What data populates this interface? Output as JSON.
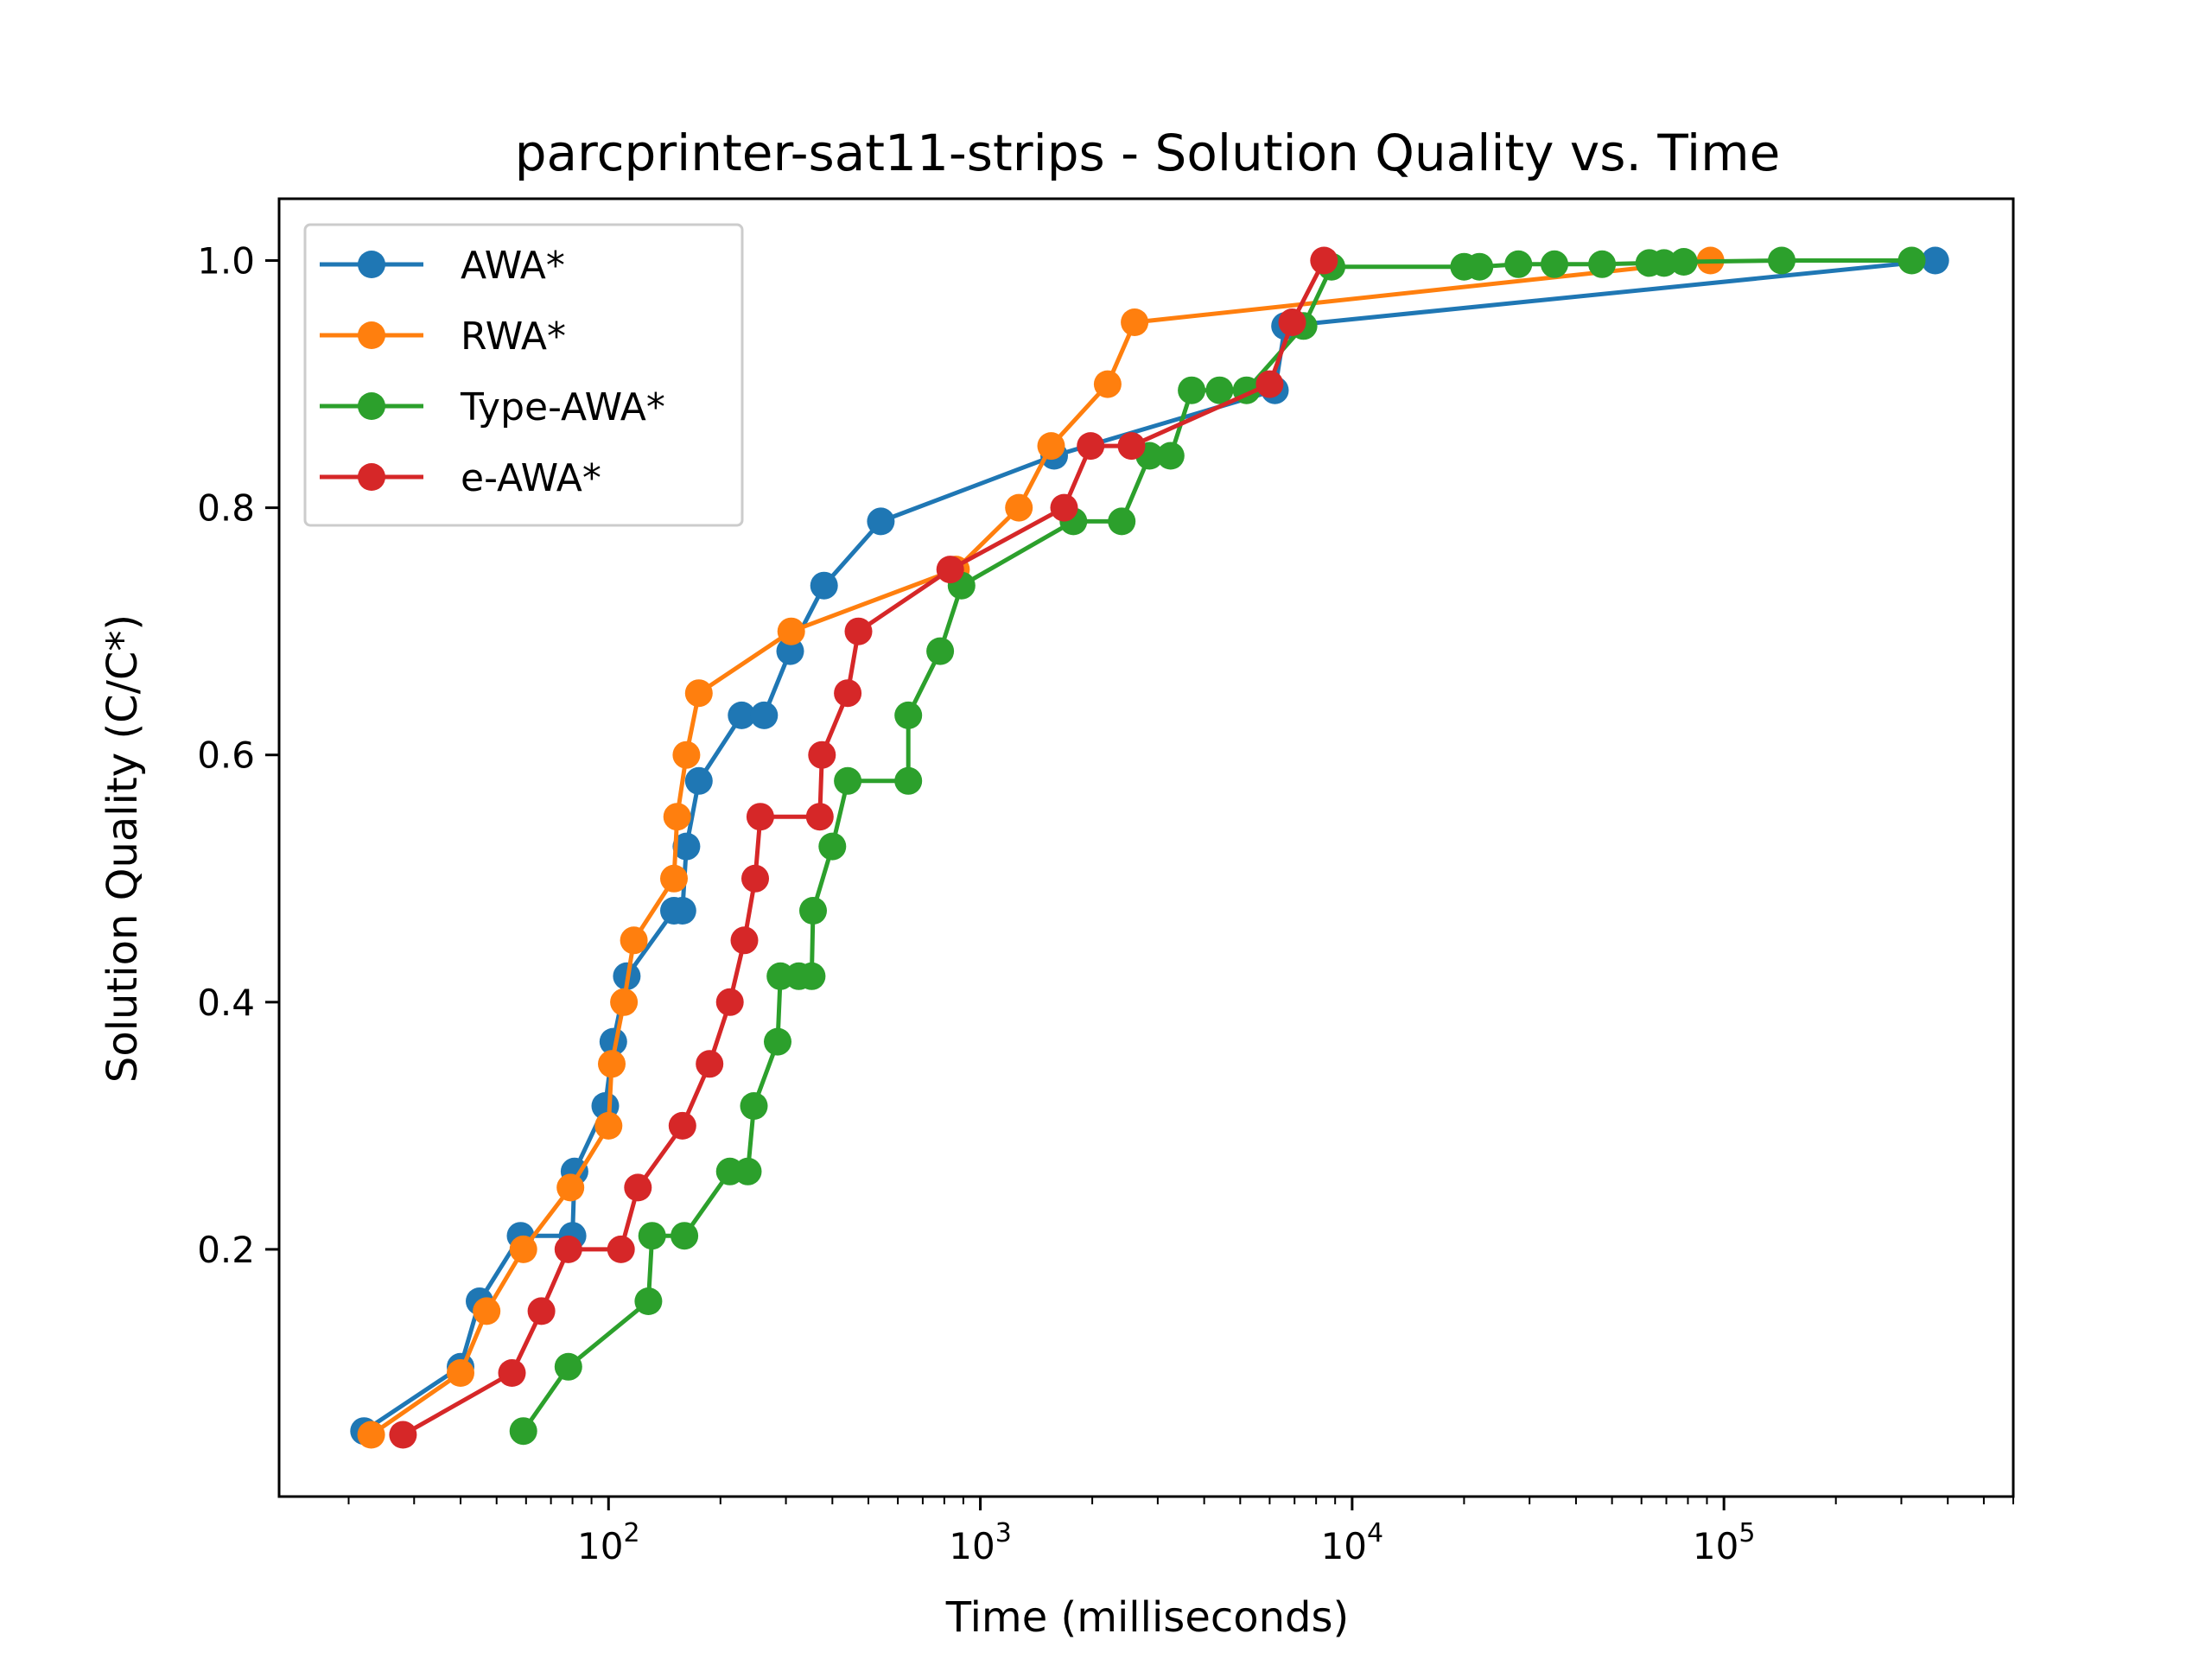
{
  "chart_data": {
    "type": "line",
    "title": "parcprinter-sat11-strips - Solution Quality vs. Time",
    "xlabel": "Time (milliseconds)",
    "ylabel": "Solution Quality (C/C*)",
    "xscale": "log",
    "xlim": [
      13,
      600000
    ],
    "ylim": [
      0.0,
      1.05
    ],
    "xticks": [
      {
        "value": 100,
        "base": "10",
        "exp": "2"
      },
      {
        "value": 1000,
        "base": "10",
        "exp": "3"
      },
      {
        "value": 10000,
        "base": "10",
        "exp": "4"
      },
      {
        "value": 100000,
        "base": "10",
        "exp": "5"
      }
    ],
    "yticks": [
      {
        "value": 0.2,
        "label": "0.2"
      },
      {
        "value": 0.4,
        "label": "0.4"
      },
      {
        "value": 0.6,
        "label": "0.6"
      },
      {
        "value": 0.8,
        "label": "0.8"
      },
      {
        "value": 1.0,
        "label": "1.0"
      }
    ],
    "legend": "upper-left",
    "grid": false,
    "series": [
      {
        "name": "AWA*",
        "color": "#1f77b4",
        "points": [
          [
            22,
            0.053
          ],
          [
            40,
            0.105
          ],
          [
            45,
            0.158
          ],
          [
            58,
            0.211
          ],
          [
            80,
            0.211
          ],
          [
            81,
            0.263
          ],
          [
            98,
            0.316
          ],
          [
            103,
            0.368
          ],
          [
            112,
            0.421
          ],
          [
            150,
            0.474
          ],
          [
            158,
            0.474
          ],
          [
            162,
            0.526
          ],
          [
            175,
            0.579
          ],
          [
            228,
            0.632
          ],
          [
            262,
            0.632
          ],
          [
            308,
            0.684
          ],
          [
            380,
            0.737
          ],
          [
            540,
            0.789
          ],
          [
            1580,
            0.842
          ],
          [
            6200,
            0.895
          ],
          [
            6600,
            0.947
          ],
          [
            370000,
            1.0
          ]
        ]
      },
      {
        "name": "RWA*",
        "color": "#ff7f0e",
        "points": [
          [
            23,
            0.05
          ],
          [
            40,
            0.1
          ],
          [
            47,
            0.15
          ],
          [
            59,
            0.2
          ],
          [
            79,
            0.25
          ],
          [
            100,
            0.3
          ],
          [
            102,
            0.35
          ],
          [
            110,
            0.4
          ],
          [
            117,
            0.45
          ],
          [
            150,
            0.5
          ],
          [
            153,
            0.55
          ],
          [
            162,
            0.6
          ],
          [
            175,
            0.65
          ],
          [
            310,
            0.7
          ],
          [
            860,
            0.75
          ],
          [
            1270,
            0.8
          ],
          [
            1550,
            0.85
          ],
          [
            2200,
            0.9
          ],
          [
            2600,
            0.95
          ],
          [
            92000,
            1.0
          ]
        ]
      },
      {
        "name": "Type-AWA*",
        "color": "#2ca02c",
        "points": [
          [
            59,
            0.053
          ],
          [
            78,
            0.105
          ],
          [
            128,
            0.158
          ],
          [
            131,
            0.211
          ],
          [
            160,
            0.211
          ],
          [
            212,
            0.263
          ],
          [
            237,
            0.263
          ],
          [
            246,
            0.316
          ],
          [
            285,
            0.368
          ],
          [
            290,
            0.421
          ],
          [
            325,
            0.421
          ],
          [
            352,
            0.421
          ],
          [
            355,
            0.474
          ],
          [
            400,
            0.526
          ],
          [
            440,
            0.579
          ],
          [
            640,
            0.579
          ],
          [
            640,
            0.632
          ],
          [
            780,
            0.684
          ],
          [
            890,
            0.737
          ],
          [
            1780,
            0.789
          ],
          [
            2400,
            0.789
          ],
          [
            2850,
            0.842
          ],
          [
            3250,
            0.842
          ],
          [
            3700,
            0.895
          ],
          [
            4400,
            0.895
          ],
          [
            5200,
            0.895
          ],
          [
            7400,
            0.947
          ],
          [
            8800,
            0.995
          ],
          [
            20000,
            0.995
          ],
          [
            22000,
            0.995
          ],
          [
            28000,
            0.997
          ],
          [
            35000,
            0.997
          ],
          [
            47000,
            0.997
          ],
          [
            63000,
            0.998
          ],
          [
            69000,
            0.998
          ],
          [
            78000,
            0.999
          ],
          [
            143000,
            1.0
          ],
          [
            320000,
            1.0
          ]
        ]
      },
      {
        "name": "e-AWA*",
        "color": "#d62728",
        "points": [
          [
            28,
            0.05
          ],
          [
            55,
            0.1
          ],
          [
            66,
            0.15
          ],
          [
            78,
            0.2
          ],
          [
            108,
            0.2
          ],
          [
            120,
            0.25
          ],
          [
            158,
            0.3
          ],
          [
            187,
            0.35
          ],
          [
            212,
            0.4
          ],
          [
            232,
            0.45
          ],
          [
            248,
            0.5
          ],
          [
            256,
            0.55
          ],
          [
            370,
            0.55
          ],
          [
            375,
            0.6
          ],
          [
            440,
            0.65
          ],
          [
            470,
            0.7
          ],
          [
            830,
            0.75
          ],
          [
            1680,
            0.8
          ],
          [
            1980,
            0.85
          ],
          [
            2550,
            0.85
          ],
          [
            6000,
            0.9
          ],
          [
            6900,
            0.95
          ],
          [
            8400,
            1.0
          ]
        ]
      }
    ]
  }
}
